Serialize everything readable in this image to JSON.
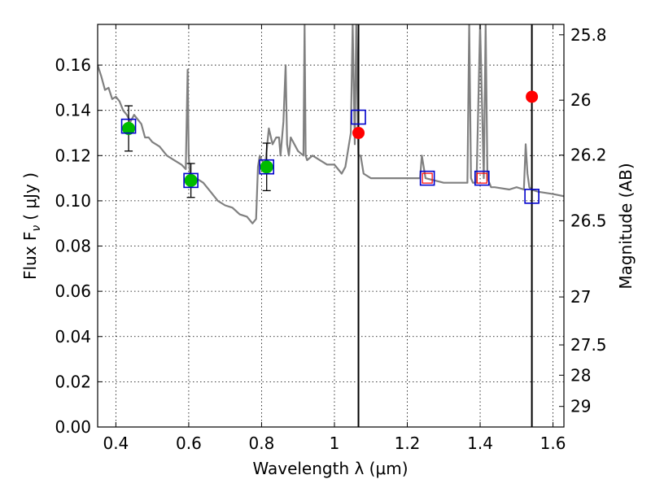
{
  "chart_data": {
    "type": "scatter",
    "xlabel": "Wavelength  λ (μm)",
    "ylabel_left": "Flux  F",
    "ylabel_left_sub": "ν",
    "ylabel_left_unit": "( μJy )",
    "ylabel_right": "Magnitude (AB)",
    "xlim": [
      0.35,
      1.63
    ],
    "ylim": [
      0.0,
      0.178
    ],
    "grid": true,
    "x_ticks": [
      0.4,
      0.6,
      0.8,
      1.0,
      1.2,
      1.4,
      1.6
    ],
    "x_tick_labels": [
      "0.4",
      "0.6",
      "0.8",
      "1",
      "1.2",
      "1.4",
      "1.6"
    ],
    "y_ticks": [
      0.0,
      0.02,
      0.04,
      0.06,
      0.08,
      0.1,
      0.12,
      0.14,
      0.16
    ],
    "y_tick_labels": [
      "0.00",
      "0.02",
      "0.04",
      "0.06",
      "0.08",
      "0.10",
      "0.12",
      "0.14",
      "0.16"
    ],
    "right_ticks": [
      {
        "label": "25.8",
        "flux": 0.1734
      },
      {
        "label": "26",
        "flux": 0.1445
      },
      {
        "label": "26.2",
        "flux": 0.1202
      },
      {
        "label": "26.5",
        "flux": 0.0912
      },
      {
        "label": "27",
        "flux": 0.0575
      },
      {
        "label": "27.5",
        "flux": 0.0363
      },
      {
        "label": "28",
        "flux": 0.0229
      },
      {
        "label": "29",
        "flux": 0.0091
      }
    ],
    "vertical_lines": [
      1.066,
      1.542
    ],
    "colors": {
      "sed": "#808080",
      "observed": "#00bb00",
      "predicted": "#ff0000",
      "model_box": "#0000cc",
      "errorbar": "#000000"
    },
    "series": [
      {
        "name": "model SED",
        "type": "line",
        "x": [
          0.35,
          0.36,
          0.37,
          0.38,
          0.39,
          0.4,
          0.41,
          0.42,
          0.43,
          0.44,
          0.45,
          0.46,
          0.47,
          0.48,
          0.49,
          0.5,
          0.52,
          0.54,
          0.56,
          0.58,
          0.592,
          0.597,
          0.6,
          0.603,
          0.608,
          0.62,
          0.64,
          0.66,
          0.68,
          0.7,
          0.72,
          0.74,
          0.76,
          0.775,
          0.785,
          0.79,
          0.795,
          0.8,
          0.81,
          0.82,
          0.83,
          0.84,
          0.848,
          0.852,
          0.86,
          0.866,
          0.87,
          0.875,
          0.88,
          0.9,
          0.915,
          0.918,
          0.921,
          0.925,
          0.94,
          0.96,
          0.98,
          1.0,
          1.02,
          1.03,
          1.045,
          1.05,
          1.056,
          1.06,
          1.066,
          1.072,
          1.08,
          1.1,
          1.15,
          1.2,
          1.235,
          1.24,
          1.25,
          1.3,
          1.35,
          1.365,
          1.37,
          1.375,
          1.38,
          1.39,
          1.4,
          1.41,
          1.415,
          1.42,
          1.43,
          1.44,
          1.48,
          1.5,
          1.52,
          1.525,
          1.53,
          1.535,
          1.54,
          1.56,
          1.6,
          1.63
        ],
        "y": [
          0.16,
          0.155,
          0.149,
          0.15,
          0.145,
          0.146,
          0.144,
          0.14,
          0.138,
          0.135,
          0.138,
          0.136,
          0.134,
          0.128,
          0.128,
          0.126,
          0.124,
          0.12,
          0.118,
          0.116,
          0.114,
          0.158,
          0.12,
          0.112,
          0.11,
          0.11,
          0.108,
          0.104,
          0.1,
          0.098,
          0.097,
          0.094,
          0.093,
          0.09,
          0.092,
          0.115,
          0.12,
          0.118,
          0.116,
          0.132,
          0.125,
          0.128,
          0.128,
          0.12,
          0.135,
          0.16,
          0.125,
          0.12,
          0.128,
          0.122,
          0.12,
          0.178,
          0.12,
          0.118,
          0.12,
          0.118,
          0.116,
          0.116,
          0.112,
          0.115,
          0.13,
          0.178,
          0.125,
          0.178,
          0.12,
          0.12,
          0.112,
          0.11,
          0.11,
          0.11,
          0.11,
          0.12,
          0.11,
          0.108,
          0.108,
          0.108,
          0.178,
          0.11,
          0.108,
          0.108,
          0.178,
          0.11,
          0.178,
          0.11,
          0.106,
          0.106,
          0.105,
          0.106,
          0.105,
          0.125,
          0.112,
          0.106,
          0.105,
          0.104,
          0.103,
          0.102
        ]
      },
      {
        "name": "observed photometry",
        "type": "scatter",
        "x": [
          0.435,
          0.606,
          0.814
        ],
        "y": [
          0.132,
          0.109,
          0.115
        ],
        "yerr": [
          0.01,
          0.0075,
          0.0105
        ]
      },
      {
        "name": "predicted photometry",
        "type": "scatter",
        "x": [
          1.066,
          1.542
        ],
        "y": [
          0.13,
          0.146
        ]
      },
      {
        "name": "model band flux",
        "type": "scatter",
        "x": [
          0.435,
          0.606,
          0.814,
          1.066,
          1.255,
          1.405,
          1.542
        ],
        "y": [
          0.133,
          0.109,
          0.115,
          0.137,
          0.11,
          0.11,
          0.102
        ]
      },
      {
        "name": "model band flux inner",
        "type": "scatter",
        "x": [
          1.255,
          1.405
        ],
        "y": [
          0.11,
          0.11
        ]
      }
    ]
  }
}
